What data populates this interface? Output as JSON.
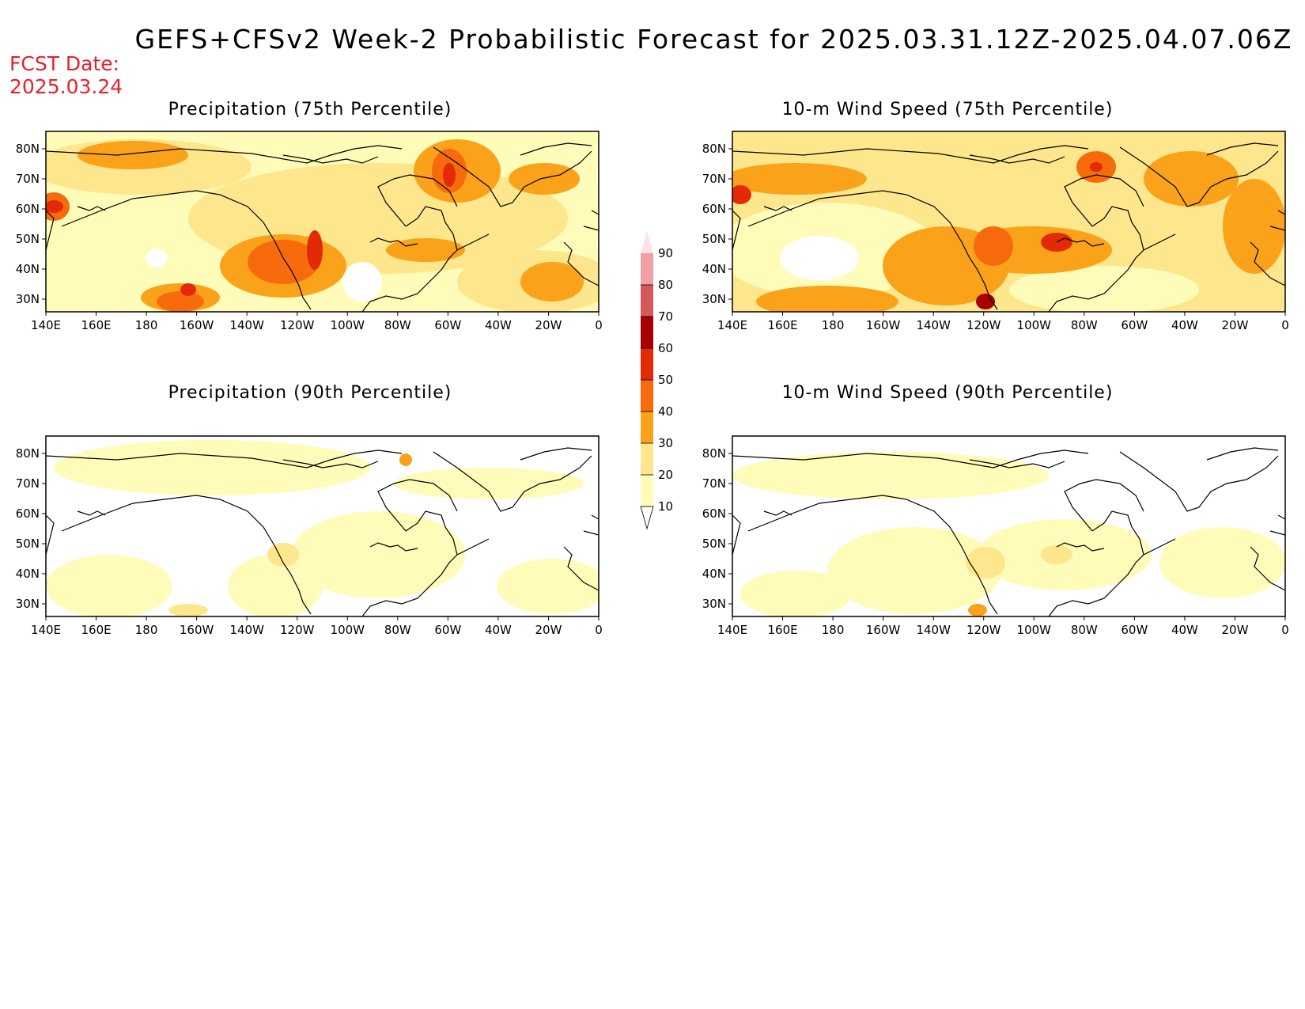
{
  "title": "GEFS+CFSv2 Week-2 Probabilistic Forecast for 2025.03.31.12Z-2025.04.07.06Z",
  "fcst_date_label": "FCST Date:",
  "fcst_date_value": "2025.03.24",
  "x_ticks": [
    "140E",
    "160E",
    "180",
    "160W",
    "140W",
    "120W",
    "100W",
    "80W",
    "60W",
    "40W",
    "20W",
    "0"
  ],
  "y_ticks": [
    "80N",
    "70N",
    "60N",
    "50N",
    "40N",
    "30N"
  ],
  "panels": [
    {
      "title": "Precipitation (75th Percentile)",
      "level": "high"
    },
    {
      "title": "10-m Wind Speed (75th Percentile)",
      "level": "high"
    },
    {
      "title": "Precipitation (90th Percentile)",
      "level": "low"
    },
    {
      "title": "10-m Wind Speed (90th Percentile)",
      "level": "low"
    }
  ],
  "legend": {
    "levels": [
      "10",
      "20",
      "30",
      "40",
      "50",
      "60",
      "70",
      "80",
      "90"
    ],
    "colors": [
      "#fffbb8",
      "#fde68b",
      "#f9a21a",
      "#f76b0c",
      "#e32a06",
      "#a80000",
      "#d35a5a",
      "#f2a0a8",
      "#fde3e6"
    ]
  }
}
